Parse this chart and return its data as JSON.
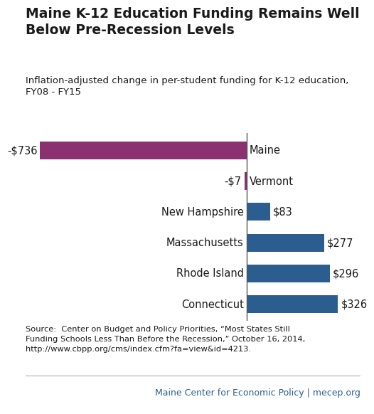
{
  "title": "Maine K-12 Education Funding Remains Well\nBelow Pre-Recession Levels",
  "subtitle": "Inflation-adjusted change in per-student funding for K-12 education,\nFY08 - FY15",
  "states": [
    "Maine",
    "Vermont",
    "New Hampshire",
    "Massachusetts",
    "Rhode Island",
    "Connecticut"
  ],
  "values": [
    -736,
    -7,
    83,
    277,
    296,
    326
  ],
  "labels": [
    "-$736",
    "-$7",
    "$83",
    "$277",
    "$296",
    "$326"
  ],
  "bar_colors": [
    "#8B3070",
    "#8B3070",
    "#2B5E8E",
    "#2B5E8E",
    "#2B5E8E",
    "#2B5E8E"
  ],
  "source_text": "Source:  Center on Budget and Policy Priorities, “Most States Still\nFunding Schools Less Than Before the Recession,” October 16, 2014,\nhttp://www.cbpp.org/cms/index.cfm?fa=view&id=4213.",
  "footer_text": "Maine Center for Economic Policy | mecep.org",
  "title_fontsize": 13.5,
  "subtitle_fontsize": 9.5,
  "label_fontsize": 10.5,
  "state_fontsize": 10.5,
  "source_fontsize": 8.2,
  "footer_fontsize": 9,
  "bar_height": 0.58,
  "xlim": [
    -800,
    420
  ],
  "background_color": "#ffffff",
  "text_color": "#1a1a1a",
  "footer_color": "#2B5E8E",
  "zero_line_color": "#555555",
  "separator_color": "#aaaaaa"
}
